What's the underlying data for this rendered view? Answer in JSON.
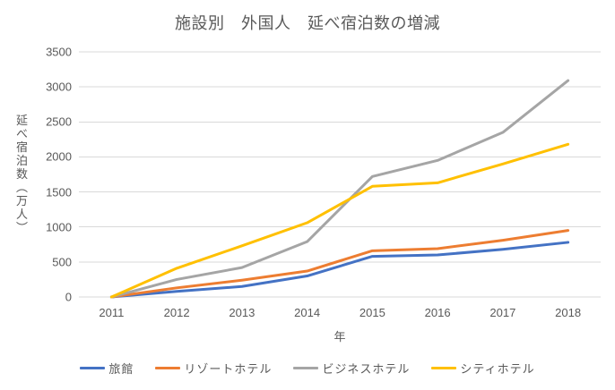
{
  "title": "施設別　外国人　延べ宿泊数の増減",
  "chart_data": {
    "type": "line",
    "title": "施設別　外国人　延べ宿泊数の増減",
    "xlabel": "年",
    "ylabel": "延べ宿泊数（万人）",
    "categories": [
      "2011",
      "2012",
      "2013",
      "2014",
      "2015",
      "2016",
      "2017",
      "2018"
    ],
    "series": [
      {
        "name": "旅館",
        "color": "#4472C4",
        "values": [
          0,
          80,
          150,
          300,
          580,
          600,
          680,
          780
        ]
      },
      {
        "name": "リゾートホテル",
        "color": "#ED7D31",
        "values": [
          0,
          130,
          240,
          370,
          660,
          690,
          810,
          950
        ]
      },
      {
        "name": "ビジネスホテル",
        "color": "#A5A5A5",
        "values": [
          0,
          250,
          420,
          790,
          1720,
          1950,
          2350,
          3090
        ]
      },
      {
        "name": "シティホテル",
        "color": "#FFC000",
        "values": [
          0,
          410,
          730,
          1060,
          1580,
          1630,
          1900,
          2180
        ]
      }
    ],
    "ylim": [
      0,
      3500
    ],
    "ytick_step": 500,
    "grid": true,
    "legend_position": "bottom",
    "colors": {
      "text": "#595959",
      "gridline": "#D9D9D9",
      "background": "#FFFFFF"
    }
  }
}
